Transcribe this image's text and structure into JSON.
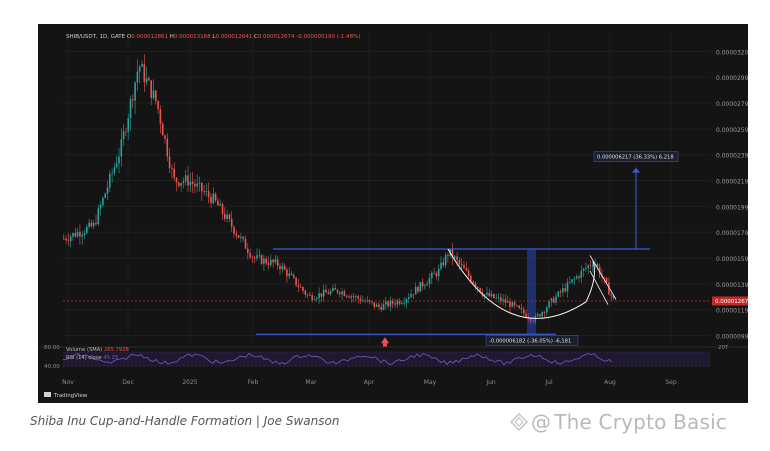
{
  "header": {
    "ticker_text": "SHIB/USDT, 1D, GATE",
    "ohlc": {
      "o_label": "O",
      "o_value": "0.000012861",
      "h_label": "H",
      "h_value": "0.000013168",
      "l_label": "L",
      "l_value": "0.000012641",
      "c_label": "C",
      "c_value": "0.000012674",
      "change": "-0.000000190 (-1.48%)"
    }
  },
  "price_axis": {
    "ticks": [
      "0.000032000",
      "0.000029999",
      "0.000027999",
      "0.000025999",
      "0.000023999",
      "0.000021999",
      "0.000019999",
      "0.000017999",
      "0.000015999",
      "0.000013999",
      "0.000011999",
      "0.000009999"
    ],
    "current_price": "0.000012674"
  },
  "time_axis": {
    "ticks": [
      "Nov",
      "Dec",
      "2025",
      "Feb",
      "Mar",
      "Apr",
      "May",
      "Jun",
      "Jul",
      "Aug",
      "Sep"
    ]
  },
  "annotations": {
    "target_label": "0.000006217 (36.33%) 6,218",
    "drop_label": "-0.000006182 (-36.05%) -6,181"
  },
  "rsi_panel": {
    "volume_label": "Volume (SMA)",
    "volume_value": "265.792B",
    "rsi_label": "RSI (14) close",
    "rsi_value": "45.25",
    "level_high": "80.00",
    "level_low": "40.00",
    "right_label": "20T"
  },
  "footer": {
    "brand": "TradingView",
    "caption": "Shiba Inu Cup-and-Handle Formation | Joe Swanson",
    "watermark": "The Crypto Basic"
  },
  "colors": {
    "background": "#141414",
    "up": "#26a69a",
    "down": "#ef5350",
    "lines": "#3b5bdb",
    "rsi": "#7e57c2"
  },
  "chart_data": {
    "type": "candlestick",
    "title": "SHIB/USDT, 1D, GATE",
    "ylim": [
      9.5e-06,
      3.35e-05
    ],
    "x_ticks": [
      "Nov",
      "Dec",
      "2025",
      "Feb",
      "Mar",
      "Apr",
      "May",
      "Jun",
      "Jul",
      "Aug",
      "Sep"
    ],
    "close_path": [
      {
        "x": "Oct",
        "y": 1.75e-05
      },
      {
        "x": "Nov",
        "y": 1.85e-05
      },
      {
        "x": "Nov",
        "y": 2.45e-05
      },
      {
        "x": "Dec",
        "y": 3.1e-05
      },
      {
        "x": "Dec",
        "y": 2.8e-05
      },
      {
        "x": "Dec",
        "y": 2.2e-05
      },
      {
        "x": "2025",
        "y": 2.2e-05
      },
      {
        "x": "2025",
        "y": 2.05e-05
      },
      {
        "x": "Feb",
        "y": 1.6e-05
      },
      {
        "x": "Feb",
        "y": 1.55e-05
      },
      {
        "x": "Mar",
        "y": 1.3e-05
      },
      {
        "x": "Mar",
        "y": 1.35e-05
      },
      {
        "x": "Apr",
        "y": 1.22e-05
      },
      {
        "x": "Apr",
        "y": 1.28e-05
      },
      {
        "x": "May",
        "y": 1.5e-05
      },
      {
        "x": "May",
        "y": 1.65e-05
      },
      {
        "x": "Jun",
        "y": 1.32e-05
      },
      {
        "x": "Jun",
        "y": 1.25e-05
      },
      {
        "x": "Jul",
        "y": 1.12e-05
      },
      {
        "x": "Jul",
        "y": 1.32e-05
      },
      {
        "x": "Aug",
        "y": 1.58e-05
      },
      {
        "x": "Aug",
        "y": 1.27e-05
      }
    ],
    "horizontal_lines": [
      {
        "name": "resistance",
        "value": 1.67e-05
      },
      {
        "name": "support",
        "value": 1.01e-05
      }
    ],
    "current_price": 1.2674e-05,
    "target_move": "0.000006217 (36.33%)",
    "cup_drop": "-0.000006182 (-36.05%)"
  }
}
